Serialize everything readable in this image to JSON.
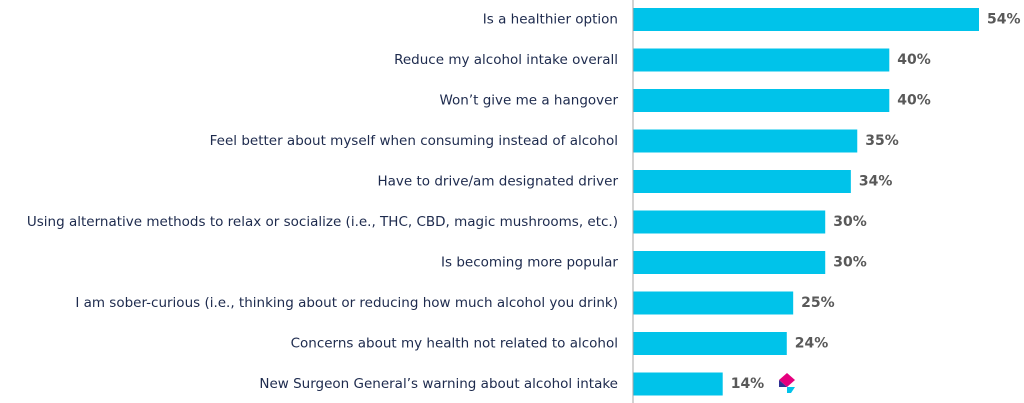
{
  "chart_data": {
    "type": "bar",
    "orientation": "horizontal",
    "categories": [
      "Is a healthier option",
      "Reduce my alcohol intake overall",
      "Won’t give me a hangover",
      "Feel better about myself when consuming instead of alcohol",
      "Have to drive/am designated driver",
      "Using alternative methods to relax or socialize (i.e., THC, CBD, magic mushrooms, etc.)",
      "Is becoming more popular",
      "I am sober-curious (i.e., thinking about or reducing how much alcohol you drink)",
      "Concerns about my health not related to alcohol",
      "New Surgeon General’s warning about alcohol intake"
    ],
    "values": [
      54,
      40,
      40,
      35,
      34,
      30,
      30,
      25,
      24,
      14
    ],
    "value_labels": [
      "54%",
      "40%",
      "40%",
      "35%",
      "34%",
      "30%",
      "30%",
      "25%",
      "24%",
      "14%"
    ],
    "xlim": [
      0,
      54
    ],
    "grid": false,
    "legend": "none",
    "bar_color": "#00c3ea",
    "axis_color": "#a6a6a6",
    "label_color": "#1d2a4d",
    "value_color": "#595959",
    "highlight_icon": "flag-logo-icon",
    "highlight_icon_colors": [
      "#e5007e",
      "#2e3192",
      "#00c3ea"
    ]
  }
}
